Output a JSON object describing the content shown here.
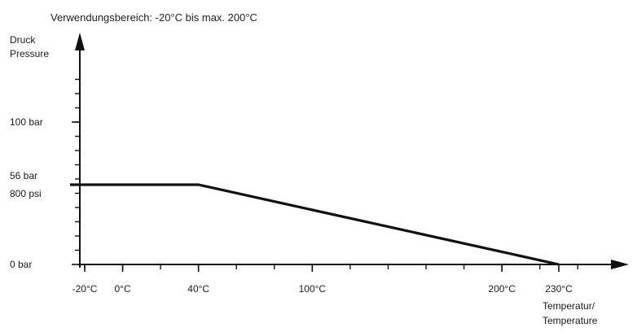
{
  "chart_data": {
    "type": "line",
    "annotation": "Verwendungsbereich: -20°C bis max. 200°C",
    "y_axis_label": [
      "Druck",
      "Pressure"
    ],
    "x_axis_label": [
      "Temperatur/",
      "Temperature"
    ],
    "x_ticks": [
      {
        "value": -20,
        "label": "-20°C"
      },
      {
        "value": 0,
        "label": "0°C"
      },
      {
        "value": 40,
        "label": "40°C"
      },
      {
        "value": 100,
        "label": "100°C"
      },
      {
        "value": 200,
        "label": "200°C"
      },
      {
        "value": 230,
        "label": "230°C"
      }
    ],
    "y_ticks": [
      {
        "value": 0,
        "label": "0 bar"
      },
      {
        "value": 56,
        "label": "56 bar"
      },
      {
        "value": 100,
        "label": "100 bar"
      }
    ],
    "y_extra_label": {
      "value": 56,
      "label": "800 psi"
    },
    "x_range": [
      -20,
      230
    ],
    "y_range": [
      0,
      140
    ],
    "series": [
      {
        "x": [
          -20,
          40,
          230
        ],
        "y": [
          56,
          56,
          0
        ]
      }
    ],
    "grid": false
  }
}
